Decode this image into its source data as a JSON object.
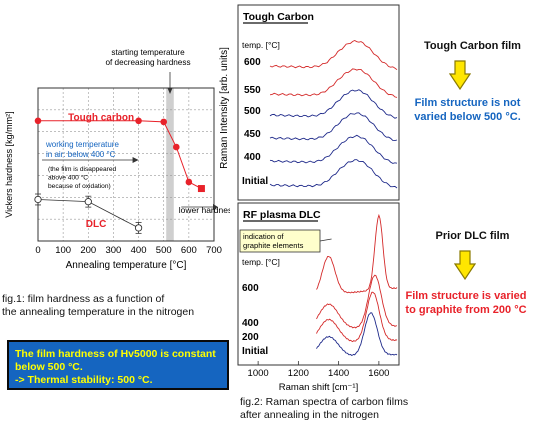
{
  "chart_data": [
    {
      "type": "scatter",
      "xlabel": "Annealing temperature [°C]",
      "ylabel": "Vickers hardness [kg/mm²]",
      "xlim": [
        0,
        700
      ],
      "ylim": [
        0,
        7000
      ],
      "x_ticks": [
        "0",
        "100",
        "200",
        "300",
        "400",
        "500",
        "600",
        "700"
      ],
      "series": [
        {
          "name": "Tough carbon",
          "x": [
            0,
            400,
            500,
            550,
            600,
            650
          ],
          "y": [
            5500,
            5500,
            5450,
            4300,
            2700,
            2400
          ]
        },
        {
          "name": "DLC",
          "x": [
            0,
            200,
            400
          ],
          "y": [
            1900,
            1800,
            600
          ],
          "yerr": [
            250,
            250,
            250
          ]
        }
      ],
      "shaded_range": [
        510,
        540
      ],
      "annotations": {
        "start_temp": "starting temperature\nof decreasing hardness",
        "working_temp": "working temperature\nin air: below 400 °C",
        "disappeared": "(the film is disappeared\nabove 400 °C\nbecause of oxidation)",
        "lower_hardness": "lower hardness"
      },
      "caption": [
        "fig.1: film hardness as a function of",
        "the annealing temperature in the nitrogen"
      ]
    },
    {
      "type": "line",
      "title": "Tough Carbon",
      "ylabel": "Raman Intensity [arb. units]",
      "legend_title": "temp. [°C]",
      "series": [
        {
          "name": "600",
          "color": "#d42a2a"
        },
        {
          "name": "550",
          "color": "#d42a2a"
        },
        {
          "name": "500",
          "color": "#1f2a8a"
        },
        {
          "name": "450",
          "color": "#1f2a8a"
        },
        {
          "name": "400",
          "color": "#1f2a8a"
        },
        {
          "name": "Initial",
          "color": "#1f2a8a"
        }
      ]
    },
    {
      "type": "line",
      "title": "RF plasma DLC",
      "xlabel": "Raman shift [cm⁻¹]",
      "xlim": [
        900,
        1700
      ],
      "x_ticks": [
        "1000",
        "1200",
        "1400",
        "1600"
      ],
      "legend_title": "temp. [°C]",
      "annotation": "indication of\ngraphite elements",
      "series": [
        {
          "name": "600",
          "color": "#d42a2a",
          "peak_x": 1600
        },
        {
          "name": "400",
          "color": "#d42a2a",
          "peak_x": 1580
        },
        {
          "name": "200",
          "color": "#d42a2a",
          "peak_x": 1570
        },
        {
          "name": "Initial",
          "color": "#1f2a8a",
          "peak_x": 1560
        }
      ],
      "caption": [
        "fig.2: Raman spectra of carbon films",
        "after annealing in the nitrogen"
      ]
    }
  ],
  "notes": {
    "hardness_box": [
      "The film hardness of Hv5000 is constant",
      "below 500 °C.",
      "-> Thermal stability: 500 °C."
    ],
    "tough_title": "Tough Carbon film",
    "tough_result": [
      "Film structure is not",
      "varied below 500 °C."
    ],
    "dlc_title": "Prior DLC film",
    "dlc_result": [
      "Film structure is varied",
      "to graphite from 200 °C"
    ]
  },
  "colors": {
    "red": "#e8222a",
    "blue": "#1565c0",
    "navy": "#1f2a8a",
    "yellow": "#ffe600"
  }
}
